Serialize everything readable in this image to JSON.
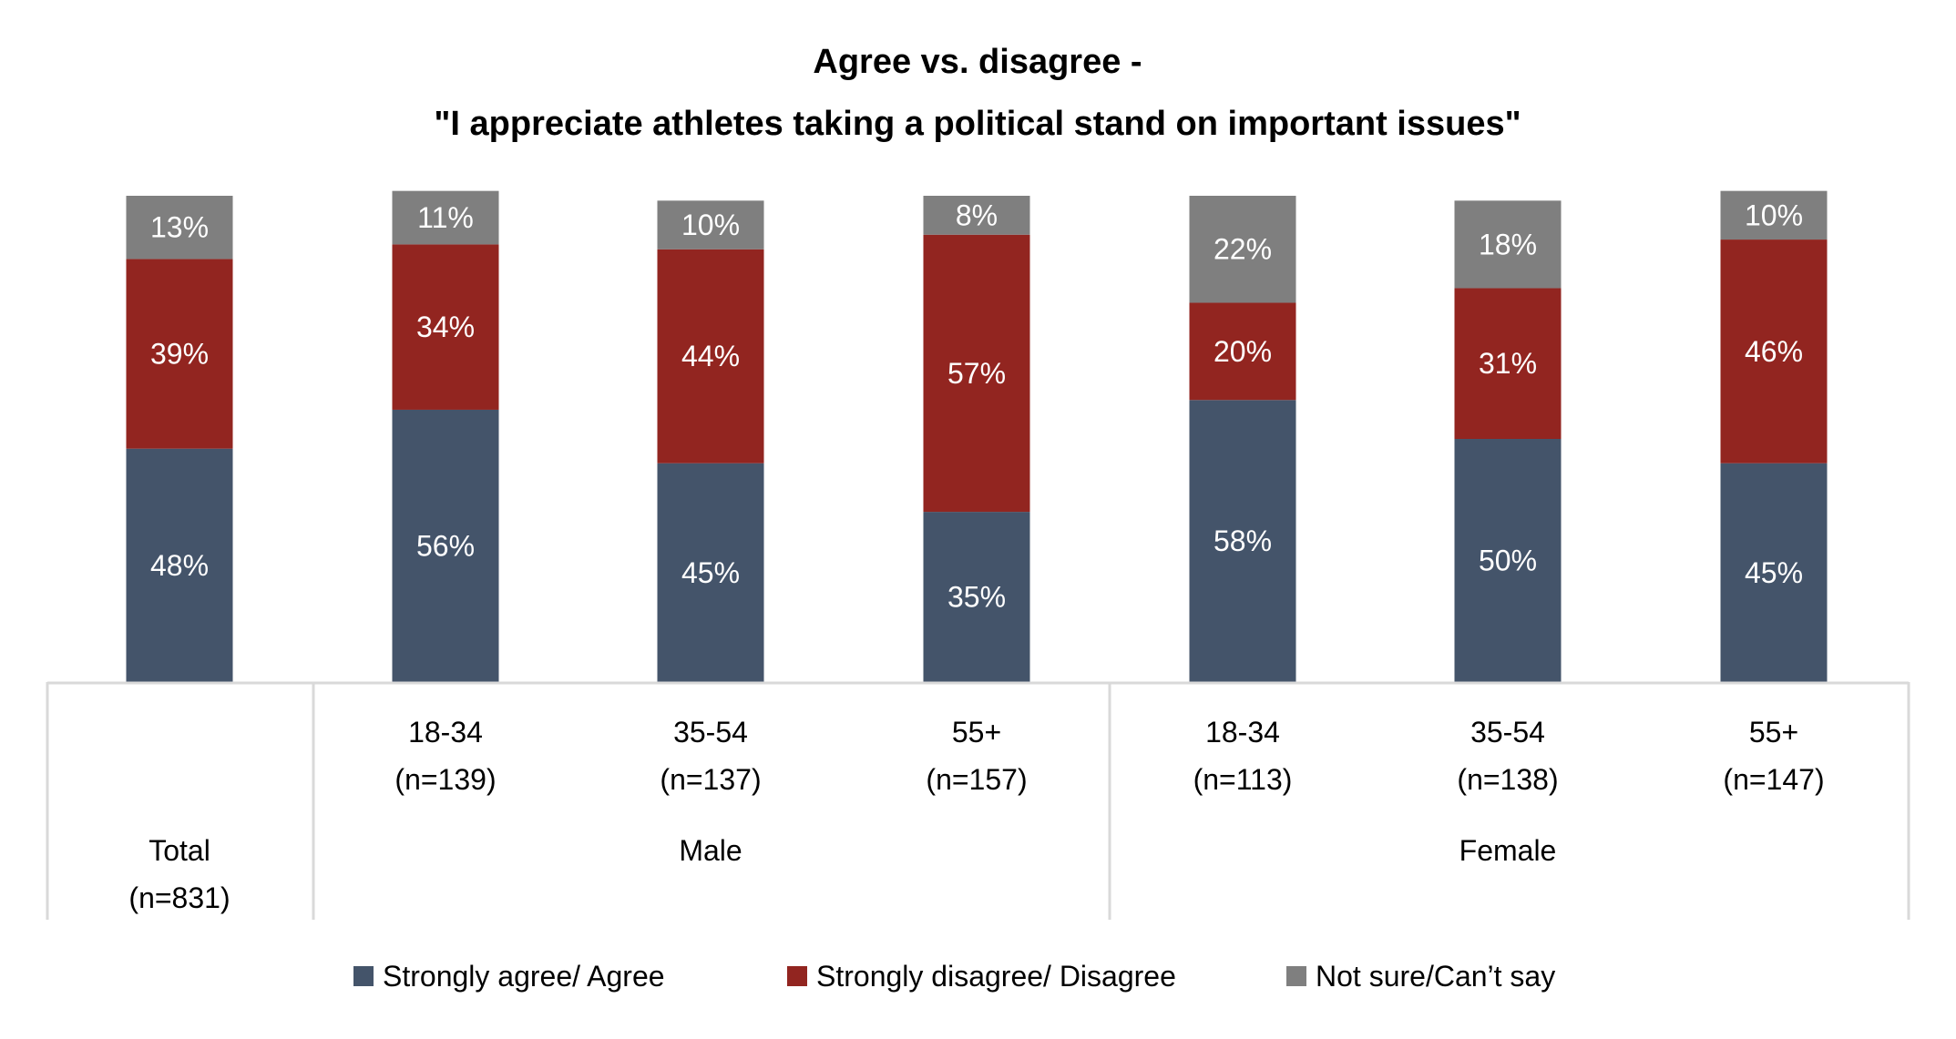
{
  "chart_data": {
    "type": "bar",
    "stacked": true,
    "title": "Agree vs. disagree -",
    "subtitle": "\"I appreciate athletes taking a political stand on important issues\"",
    "xlabel": "",
    "ylabel": "",
    "ylim": [
      0,
      100
    ],
    "grid": false,
    "legend_position": "bottom",
    "categories": [
      {
        "label": "Total",
        "n": "(n=831)",
        "group": ""
      },
      {
        "label": "18-34",
        "n": "(n=139)",
        "group": "Male"
      },
      {
        "label": "35-54",
        "n": "(n=137)",
        "group": "Male"
      },
      {
        "label": "55+",
        "n": "(n=157)",
        "group": "Male"
      },
      {
        "label": "18-34",
        "n": "(n=113)",
        "group": "Female"
      },
      {
        "label": "35-54",
        "n": "(n=138)",
        "group": "Female"
      },
      {
        "label": "55+",
        "n": "(n=147)",
        "group": "Female"
      }
    ],
    "groups": [
      {
        "label": "Total",
        "sublabel": "(n=831)"
      },
      {
        "label": "Male"
      },
      {
        "label": "Female"
      }
    ],
    "series": [
      {
        "name": "Strongly agree/ Agree",
        "color": "#44546A",
        "values": [
          48,
          56,
          45,
          35,
          58,
          50,
          45
        ],
        "labels": [
          "48%",
          "56%",
          "45%",
          "35%",
          "58%",
          "50%",
          "45%"
        ]
      },
      {
        "name": "Strongly disagree/ Disagree",
        "color": "#922520",
        "values": [
          39,
          34,
          44,
          57,
          20,
          31,
          46
        ],
        "labels": [
          "39%",
          "34%",
          "44%",
          "57%",
          "20%",
          "31%",
          "46%"
        ]
      },
      {
        "name": "Not sure/Can’t say",
        "color": "#7F7F7F",
        "values": [
          13,
          11,
          10,
          8,
          22,
          18,
          10
        ],
        "labels": [
          "13%",
          "11%",
          "10%",
          "8%",
          "22%",
          "18%",
          "10%"
        ]
      }
    ]
  }
}
